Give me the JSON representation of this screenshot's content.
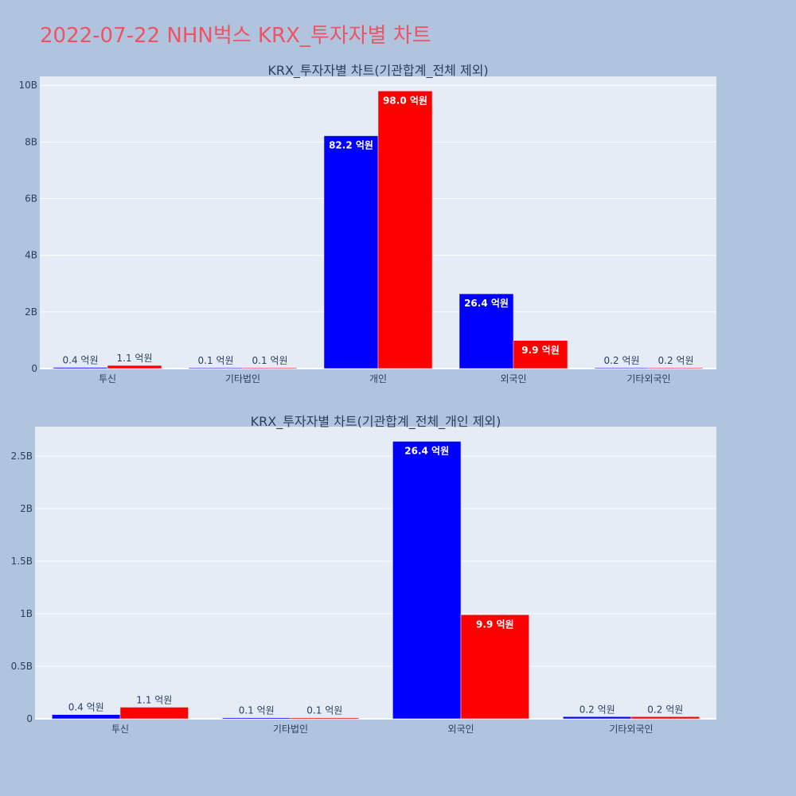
{
  "title": "2022-07-22 NHN벅스 KRX_투자자별 차트",
  "chart_data": [
    {
      "type": "bar",
      "title": "KRX_투자자별 차트(기관합계_전체 제외)",
      "categories": [
        "투신",
        "기타법인",
        "개인",
        "외국인",
        "기타외국인"
      ],
      "series": [
        {
          "color": "#0000ff",
          "values": [
            40000000,
            10000000,
            8220000000,
            2640000000,
            20000000
          ],
          "labels": [
            "0.4 억원",
            "0.1 억원",
            "82.2 억원",
            "26.4 억원",
            "0.2 억원"
          ]
        },
        {
          "color": "#ff0000",
          "values": [
            110000000,
            10000000,
            9800000000,
            990000000,
            20000000
          ],
          "labels": [
            "1.1 억원",
            "0.1 억원",
            "98.0 억원",
            "9.9 억원",
            "0.2 억원"
          ]
        }
      ],
      "yticks": [
        0,
        2000000000,
        4000000000,
        6000000000,
        8000000000,
        10000000000
      ],
      "ytick_labels": [
        "0",
        "2B",
        "4B",
        "6B",
        "8B",
        "10B"
      ],
      "ylim": [
        0,
        10316000000
      ],
      "grid": true,
      "xlabel": "",
      "ylabel": ""
    },
    {
      "type": "bar",
      "title": "KRX_투자자별 차트(기관합계_전체_개인 제외)",
      "categories": [
        "투신",
        "기타법인",
        "외국인",
        "기타외국인"
      ],
      "series": [
        {
          "color": "#0000ff",
          "values": [
            40000000,
            10000000,
            2640000000,
            20000000
          ],
          "labels": [
            "0.4 억원",
            "0.1 억원",
            "26.4 억원",
            "0.2 억원"
          ]
        },
        {
          "color": "#ff0000",
          "values": [
            110000000,
            10000000,
            990000000,
            20000000
          ],
          "labels": [
            "1.1 억원",
            "0.1 억원",
            "9.9 억원",
            "0.2 억원"
          ]
        }
      ],
      "yticks": [
        0,
        500000000,
        1000000000,
        1500000000,
        2000000000,
        2500000000
      ],
      "ytick_labels": [
        "0",
        "0.5B",
        "1B",
        "1.5B",
        "2B",
        "2.5B"
      ],
      "ylim": [
        0,
        2780000000
      ],
      "grid": true,
      "xlabel": "",
      "ylabel": ""
    }
  ]
}
